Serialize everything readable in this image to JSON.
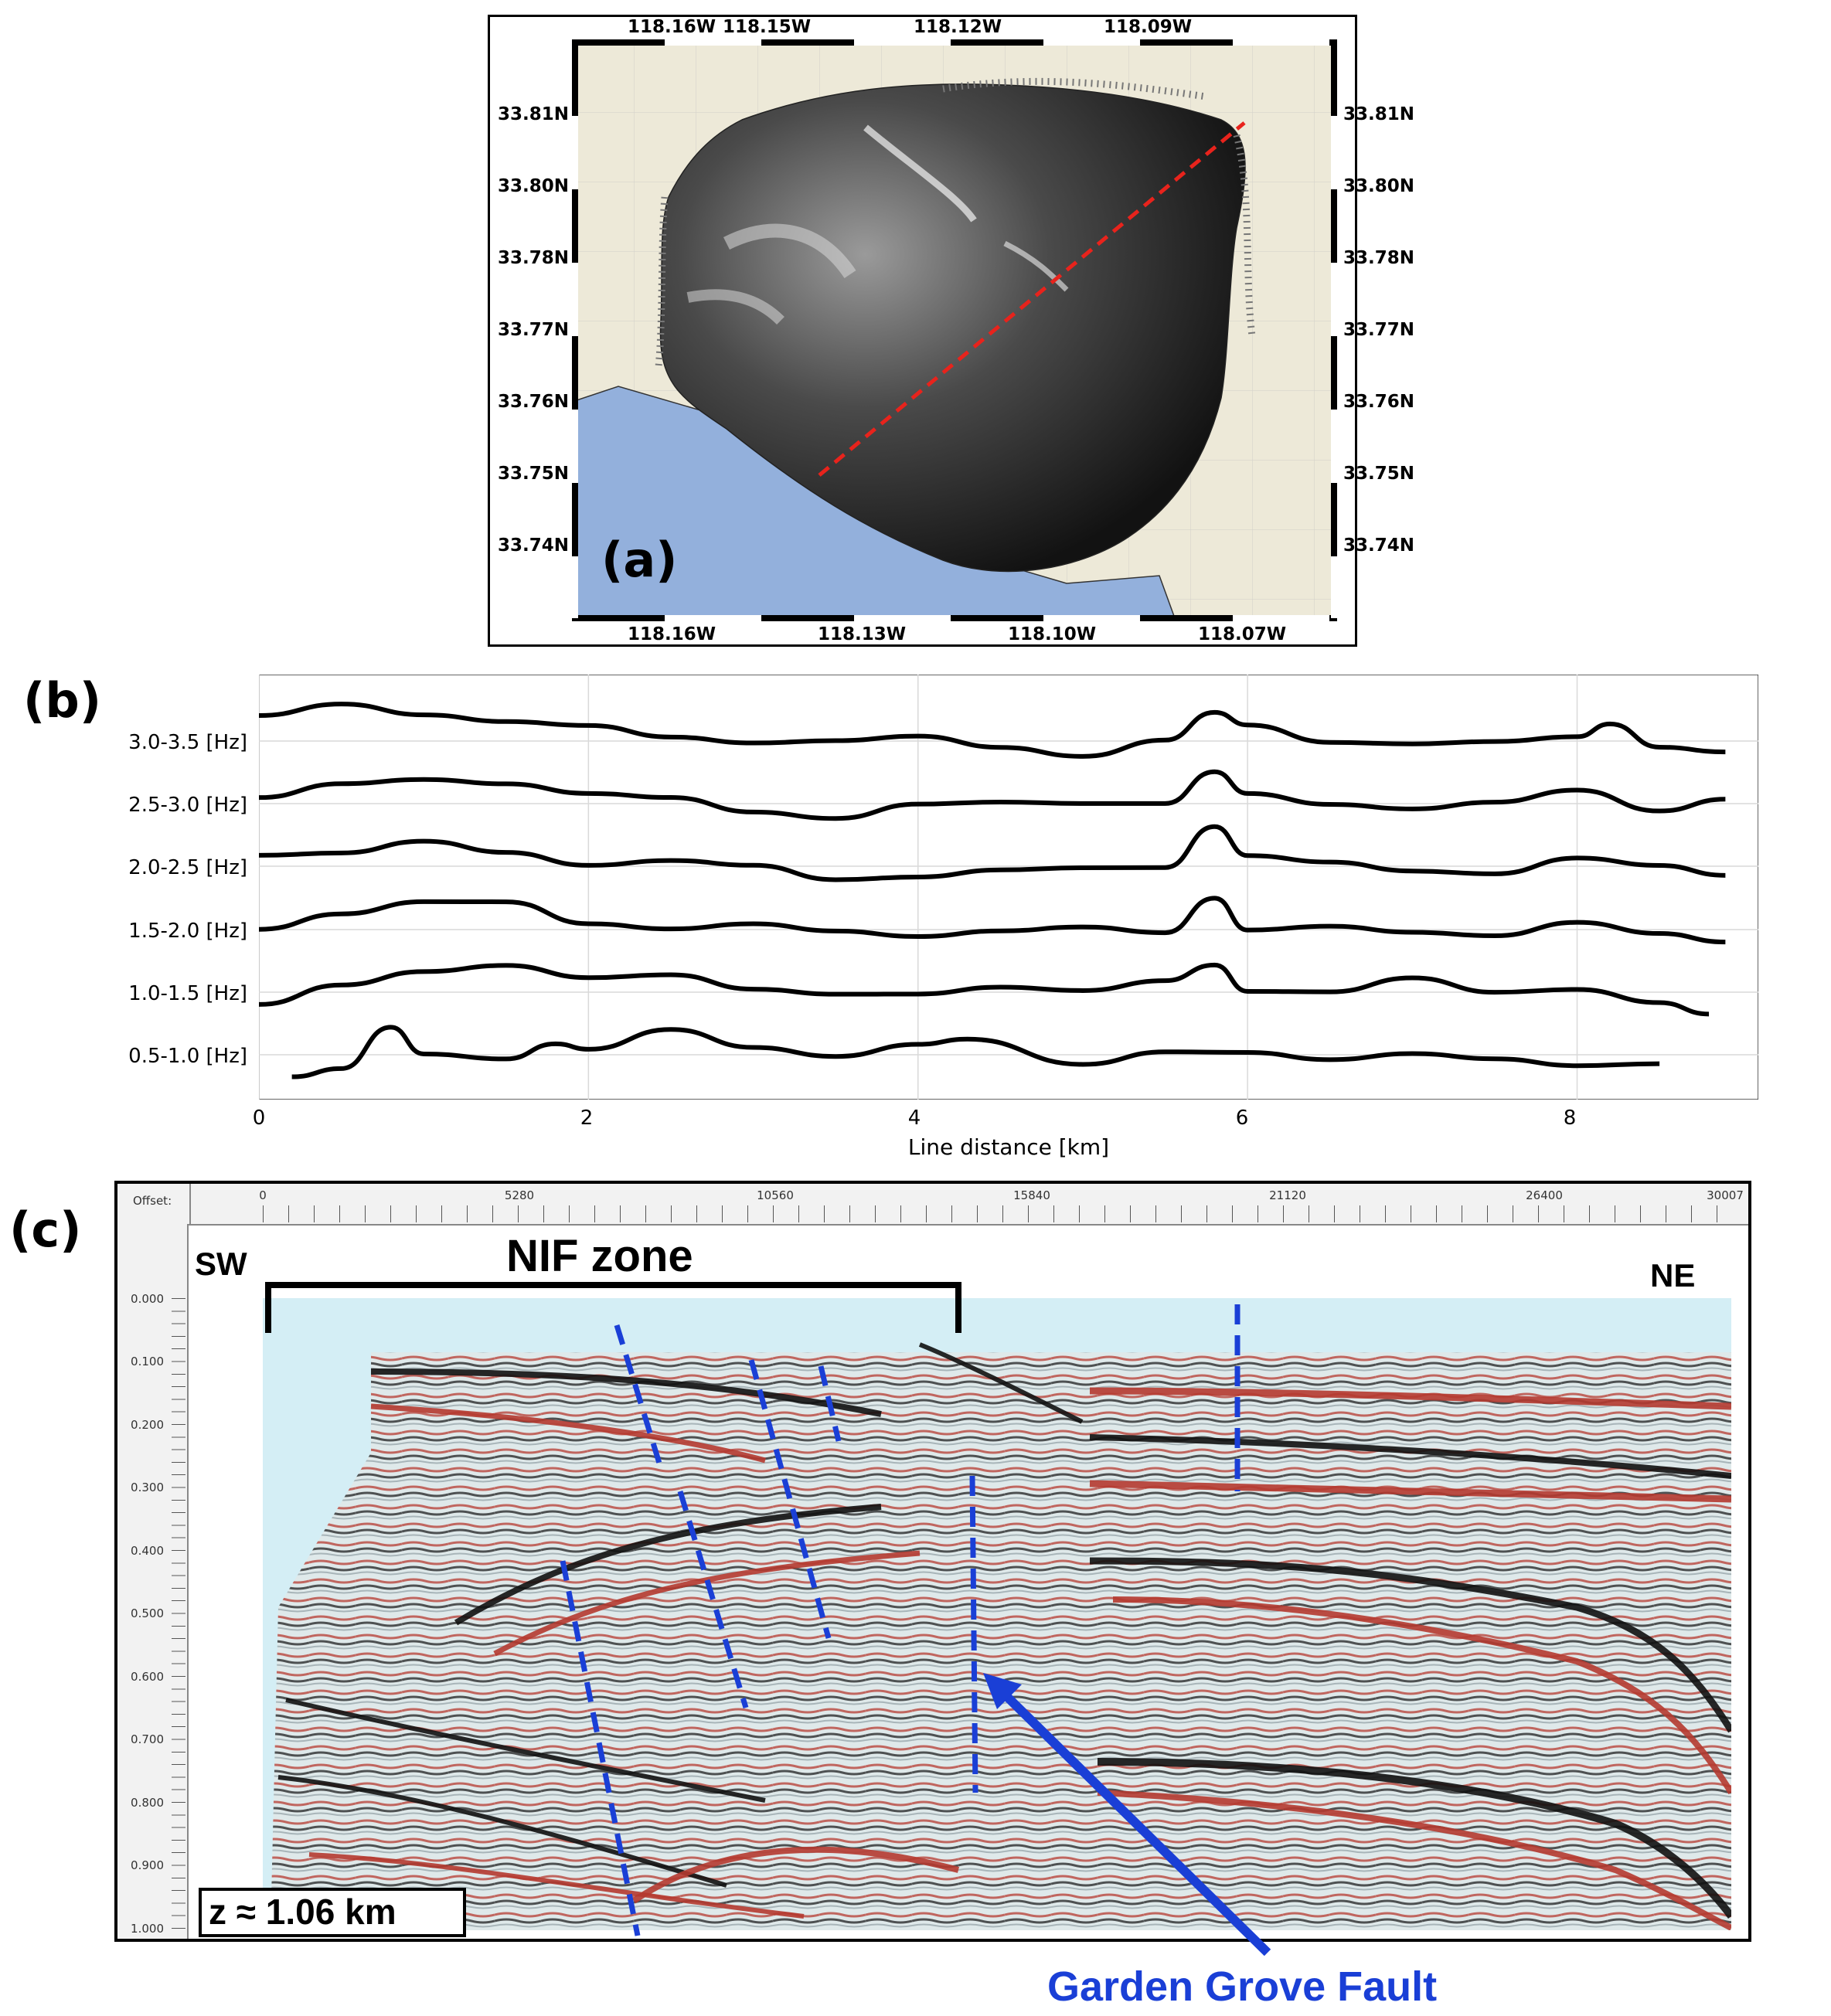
{
  "panel_a": {
    "letter": "(a)",
    "top_lon_ticks": [
      "118.16W",
      "118.15W",
      "118.12W",
      "118.09W"
    ],
    "bottom_lon_ticks": [
      "118.16W",
      "118.13W",
      "118.10W",
      "118.07W"
    ],
    "lat_ticks": [
      "33.81N",
      "33.80N",
      "33.78N",
      "33.77N",
      "33.76N",
      "33.75N",
      "33.74N"
    ],
    "colors": {
      "land": "#ede9d8",
      "ocean": "#93b0dc",
      "profile_line": "#e8231c"
    }
  },
  "panel_b": {
    "letter": "(b)",
    "xlabel": "Line distance [km]",
    "x_ticks": [
      "0",
      "2",
      "4",
      "6",
      "8"
    ],
    "bands": [
      "3.0-3.5 [Hz]",
      "2.5-3.0 [Hz]",
      "2.0-2.5 [Hz]",
      "1.5-2.0 [Hz]",
      "1.0-1.5 [Hz]",
      "0.5-1.0 [Hz]"
    ]
  },
  "panel_c": {
    "letter": "(c)",
    "offset_label": "Offset:",
    "offset_ticks": [
      "0",
      "5280",
      "10560",
      "15840",
      "21120",
      "26400",
      "30007"
    ],
    "depth_ticks": [
      "0.000",
      "0.100",
      "0.200",
      "0.300",
      "0.400",
      "0.500",
      "0.600",
      "0.700",
      "0.800",
      "0.900",
      "1.000"
    ],
    "sw_label": "SW",
    "ne_label": "NE",
    "zone_label": "NIF zone",
    "depth_note": "z ≈ 1.06 km",
    "fault_label": "Garden Grove Fault",
    "colors": {
      "fault_lines": "#1a3fd6",
      "fault_label": "#1a3fd6"
    }
  },
  "chart_data": [
    {
      "type": "map",
      "title": "",
      "lon_ticks_top": [
        "118.16W",
        "118.15W",
        "118.12W",
        "118.09W"
      ],
      "lon_ticks_bottom": [
        "118.16W",
        "118.13W",
        "118.10W",
        "118.07W"
      ],
      "lat_ticks": [
        "33.81N",
        "33.80N",
        "33.78N",
        "33.77N",
        "33.76N",
        "33.75N",
        "33.74N"
      ],
      "profile_line": {
        "start": "SW",
        "end": "NE",
        "style": "dashed red"
      }
    },
    {
      "type": "line",
      "xlabel": "Line distance [km]",
      "ylabel": "",
      "xlim": [
        0,
        9.1
      ],
      "x_ticks": [
        0,
        2,
        4,
        6,
        8
      ],
      "series": [
        {
          "name": "3.0-3.5 [Hz]",
          "x": [
            0,
            0.5,
            1,
            1.5,
            2,
            2.5,
            3,
            3.5,
            4,
            4.5,
            5,
            5.5,
            5.8,
            6,
            6.5,
            7,
            7.5,
            8,
            8.2,
            8.5,
            8.9
          ],
          "values": [
            0.6,
            0.7,
            0.6,
            0.55,
            0.35,
            0.1,
            0.05,
            -0.05,
            -0.05,
            -0.1,
            -0.2,
            0.0,
            0.85,
            0.3,
            0.0,
            -0.1,
            -0.1,
            0.2,
            0.3,
            0.0,
            -0.4
          ]
        },
        {
          "name": "2.5-3.0 [Hz]",
          "x": [
            0,
            0.5,
            1,
            1.5,
            2,
            2.5,
            3,
            3.5,
            4,
            4.5,
            5,
            5.5,
            5.8,
            6,
            6.5,
            7,
            7.5,
            8,
            8.5,
            8.9
          ],
          "values": [
            0.3,
            0.45,
            0.5,
            0.5,
            0.2,
            0.05,
            -0.1,
            -0.2,
            -0.1,
            -0.1,
            0.05,
            0.05,
            0.75,
            0.2,
            0.05,
            -0.05,
            -0.1,
            0.2,
            -0.05,
            0.0
          ]
        },
        {
          "name": "2.0-2.5 [Hz]",
          "x": [
            0,
            0.5,
            1,
            1.5,
            2,
            2.5,
            3,
            3.5,
            4,
            4.5,
            5,
            5.5,
            5.8,
            6,
            6.5,
            7,
            7.5,
            8,
            8.5,
            8.9
          ],
          "values": [
            0.3,
            0.35,
            0.55,
            0.4,
            0.1,
            0.0,
            -0.1,
            -0.2,
            -0.15,
            -0.15,
            -0.05,
            0.0,
            0.8,
            0.15,
            0.05,
            0.05,
            -0.1,
            0.05,
            -0.05,
            -0.1
          ]
        },
        {
          "name": "1.5-2.0 [Hz]",
          "x": [
            0,
            0.5,
            1,
            1.5,
            2,
            2.5,
            3,
            3.5,
            4,
            4.5,
            5,
            5.5,
            5.8,
            6,
            6.5,
            7,
            7.5,
            8,
            8.5,
            8.9
          ],
          "values": [
            0.0,
            0.4,
            0.55,
            0.6,
            0.3,
            0.1,
            0.0,
            -0.1,
            -0.1,
            -0.05,
            0.05,
            0.05,
            0.7,
            0.0,
            -0.1,
            -0.1,
            0.0,
            0.2,
            -0.15,
            -0.2
          ]
        },
        {
          "name": "1.0-1.5 [Hz]",
          "x": [
            0,
            0.5,
            1,
            1.5,
            2,
            2.5,
            3,
            3.5,
            4,
            4.5,
            5,
            5.5,
            5.8,
            6,
            6.5,
            7,
            7.5,
            8,
            8.5,
            8.8
          ],
          "values": [
            -0.3,
            0.3,
            0.5,
            0.45,
            0.3,
            0.55,
            0.1,
            -0.1,
            0.0,
            0.1,
            -0.1,
            0.3,
            0.6,
            0.2,
            0.0,
            0.2,
            0.0,
            0.1,
            -0.3,
            -0.4
          ]
        },
        {
          "name": "0.5-1.0 [Hz]",
          "x": [
            0.2,
            0.5,
            0.8,
            1,
            1.5,
            1.8,
            2,
            2.5,
            3,
            3.5,
            4,
            4.3,
            5,
            5.5,
            6,
            6.5,
            7,
            7.5,
            8,
            8.5
          ],
          "values": [
            -0.4,
            -0.3,
            0.6,
            0.2,
            -0.1,
            0.4,
            0.0,
            0.6,
            0.2,
            -0.1,
            0.3,
            0.4,
            -0.3,
            -0.1,
            0.1,
            0.0,
            0.0,
            -0.1,
            -0.2,
            -0.3
          ]
        }
      ]
    },
    {
      "type": "other",
      "description_free": true,
      "offset_ticks": [
        0,
        5280,
        10560,
        15840,
        21120,
        26400,
        30007
      ],
      "depth_ticks": [
        0.0,
        0.1,
        0.2,
        0.3,
        0.4,
        0.5,
        0.6,
        0.7,
        0.8,
        0.9,
        1.0
      ]
    }
  ]
}
